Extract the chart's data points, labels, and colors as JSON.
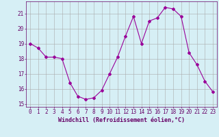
{
  "x": [
    0,
    1,
    2,
    3,
    4,
    5,
    6,
    7,
    8,
    9,
    10,
    11,
    12,
    13,
    14,
    15,
    16,
    17,
    18,
    19,
    20,
    21,
    22,
    23
  ],
  "y": [
    19.0,
    18.7,
    18.1,
    18.1,
    18.0,
    16.4,
    15.5,
    15.3,
    15.4,
    15.9,
    17.0,
    18.1,
    19.5,
    20.8,
    19.0,
    20.5,
    20.7,
    21.4,
    21.3,
    20.8,
    18.4,
    17.6,
    16.5,
    15.8
  ],
  "line_color": "#990099",
  "marker": "D",
  "marker_size": 2.0,
  "bg_color": "#d6eff5",
  "grid_color": "#aaaaaa",
  "ylabel_ticks": [
    15,
    16,
    17,
    18,
    19,
    20,
    21
  ],
  "xlabel": "Windchill (Refroidissement éolien,°C)",
  "xlim": [
    -0.5,
    23.5
  ],
  "ylim": [
    14.8,
    21.8
  ],
  "line_color_hex": "#990099",
  "tick_color": "#660066",
  "label_color": "#660066",
  "label_fontsize": 6.0,
  "tick_fontsize": 5.5
}
